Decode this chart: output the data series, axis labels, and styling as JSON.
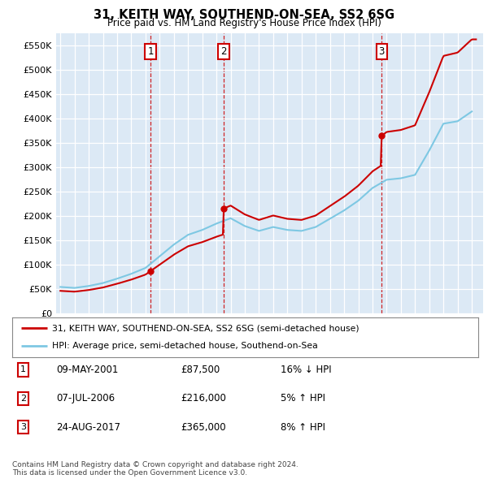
{
  "title": "31, KEITH WAY, SOUTHEND-ON-SEA, SS2 6SG",
  "subtitle": "Price paid vs. HM Land Registry's House Price Index (HPI)",
  "plot_bg_color": "#dce9f5",
  "ylim": [
    0,
    575000
  ],
  "yticks": [
    0,
    50000,
    100000,
    150000,
    200000,
    250000,
    300000,
    350000,
    400000,
    450000,
    500000,
    550000
  ],
  "ytick_labels": [
    "£0",
    "£50K",
    "£100K",
    "£150K",
    "£200K",
    "£250K",
    "£300K",
    "£350K",
    "£400K",
    "£450K",
    "£500K",
    "£550K"
  ],
  "xlim_start": 1994.7,
  "xlim_end": 2024.8,
  "hpi_color": "#7ec8e3",
  "price_color": "#cc0000",
  "purchases": [
    {
      "date_num": 2001.35,
      "price": 87500,
      "label": "1"
    },
    {
      "date_num": 2006.52,
      "price": 216000,
      "label": "2"
    },
    {
      "date_num": 2017.65,
      "price": 365000,
      "label": "3"
    }
  ],
  "legend_line1": "31, KEITH WAY, SOUTHEND-ON-SEA, SS2 6SG (semi-detached house)",
  "legend_line2": "HPI: Average price, semi-detached house, Southend-on-Sea",
  "table_rows": [
    {
      "num": "1",
      "date": "09-MAY-2001",
      "price": "£87,500",
      "hpi": "16% ↓ HPI"
    },
    {
      "num": "2",
      "date": "07-JUL-2006",
      "price": "£216,000",
      "hpi": "5% ↑ HPI"
    },
    {
      "num": "3",
      "date": "24-AUG-2017",
      "price": "£365,000",
      "hpi": "8% ↑ HPI"
    }
  ],
  "footer": "Contains HM Land Registry data © Crown copyright and database right 2024.\nThis data is licensed under the Open Government Licence v3.0."
}
